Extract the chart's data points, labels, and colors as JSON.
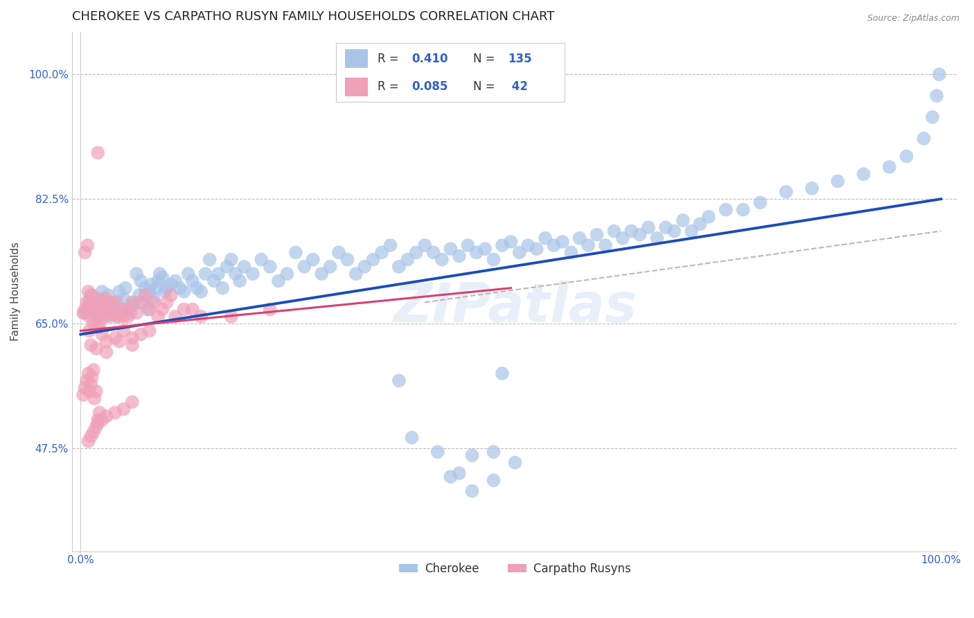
{
  "title": "CHEROKEE VS CARPATHO RUSYN FAMILY HOUSEHOLDS CORRELATION CHART",
  "source": "Source: ZipAtlas.com",
  "ylabel": "Family Households",
  "cherokee_color": "#a8c4e8",
  "carpatho_color": "#f0a0b8",
  "cherokee_line_color": "#1a4db8",
  "carpatho_line_color": "#d84070",
  "dashed_line_color": "#c8a8a8",
  "label_color": "#3060d0",
  "background_color": "#ffffff",
  "watermark": "ZIPatlas",
  "title_fontsize": 13,
  "axis_label_fontsize": 11,
  "tick_fontsize": 11,
  "cherokee_x": [
    0.005,
    0.008,
    0.01,
    0.012,
    0.015,
    0.018,
    0.02,
    0.022,
    0.025,
    0.028,
    0.03,
    0.032,
    0.035,
    0.038,
    0.04,
    0.042,
    0.045,
    0.048,
    0.05,
    0.052,
    0.055,
    0.058,
    0.06,
    0.062,
    0.065,
    0.068,
    0.07,
    0.072,
    0.075,
    0.078,
    0.08,
    0.082,
    0.085,
    0.088,
    0.09,
    0.092,
    0.095,
    0.098,
    0.1,
    0.105,
    0.11,
    0.115,
    0.12,
    0.125,
    0.13,
    0.135,
    0.14,
    0.145,
    0.15,
    0.155,
    0.16,
    0.165,
    0.17,
    0.175,
    0.18,
    0.185,
    0.19,
    0.2,
    0.21,
    0.22,
    0.23,
    0.24,
    0.25,
    0.26,
    0.27,
    0.28,
    0.29,
    0.3,
    0.31,
    0.32,
    0.33,
    0.34,
    0.35,
    0.36,
    0.37,
    0.38,
    0.39,
    0.4,
    0.41,
    0.42,
    0.43,
    0.44,
    0.45,
    0.46,
    0.47,
    0.48,
    0.49,
    0.5,
    0.51,
    0.52,
    0.53,
    0.54,
    0.55,
    0.56,
    0.57,
    0.58,
    0.59,
    0.6,
    0.61,
    0.62,
    0.63,
    0.64,
    0.65,
    0.66,
    0.67,
    0.68,
    0.69,
    0.7,
    0.71,
    0.72,
    0.73,
    0.75,
    0.77,
    0.79,
    0.82,
    0.85,
    0.88,
    0.91,
    0.94,
    0.96,
    0.98,
    0.99,
    0.995,
    0.998,
    0.37,
    0.49,
    0.43,
    0.48,
    0.505,
    0.48,
    0.455,
    0.44,
    0.415,
    0.385,
    0.455
  ],
  "cherokee_y": [
    0.665,
    0.67,
    0.68,
    0.69,
    0.675,
    0.66,
    0.67,
    0.685,
    0.695,
    0.67,
    0.68,
    0.69,
    0.66,
    0.665,
    0.675,
    0.68,
    0.695,
    0.665,
    0.685,
    0.7,
    0.67,
    0.665,
    0.675,
    0.68,
    0.72,
    0.69,
    0.71,
    0.68,
    0.7,
    0.67,
    0.695,
    0.705,
    0.685,
    0.7,
    0.71,
    0.72,
    0.715,
    0.695,
    0.7,
    0.705,
    0.71,
    0.7,
    0.695,
    0.72,
    0.71,
    0.7,
    0.695,
    0.72,
    0.74,
    0.71,
    0.72,
    0.7,
    0.73,
    0.74,
    0.72,
    0.71,
    0.73,
    0.72,
    0.74,
    0.73,
    0.71,
    0.72,
    0.75,
    0.73,
    0.74,
    0.72,
    0.73,
    0.75,
    0.74,
    0.72,
    0.73,
    0.74,
    0.75,
    0.76,
    0.73,
    0.74,
    0.75,
    0.76,
    0.75,
    0.74,
    0.755,
    0.745,
    0.76,
    0.75,
    0.755,
    0.74,
    0.76,
    0.765,
    0.75,
    0.76,
    0.755,
    0.77,
    0.76,
    0.765,
    0.75,
    0.77,
    0.76,
    0.775,
    0.76,
    0.78,
    0.77,
    0.78,
    0.775,
    0.785,
    0.77,
    0.785,
    0.78,
    0.795,
    0.78,
    0.79,
    0.8,
    0.81,
    0.81,
    0.82,
    0.835,
    0.84,
    0.85,
    0.86,
    0.87,
    0.885,
    0.91,
    0.94,
    0.97,
    1.0,
    0.57,
    0.58,
    0.435,
    0.47,
    0.455,
    0.43,
    0.415,
    0.44,
    0.47,
    0.49,
    0.465
  ],
  "carpatho_x": [
    0.003,
    0.005,
    0.007,
    0.009,
    0.01,
    0.012,
    0.013,
    0.015,
    0.016,
    0.018,
    0.02,
    0.022,
    0.024,
    0.025,
    0.027,
    0.029,
    0.03,
    0.033,
    0.035,
    0.038,
    0.04,
    0.042,
    0.045,
    0.048,
    0.05,
    0.055,
    0.06,
    0.065,
    0.07,
    0.075,
    0.08,
    0.085,
    0.09,
    0.095,
    0.1,
    0.105,
    0.11,
    0.12,
    0.13,
    0.14,
    0.175,
    0.22
  ],
  "carpatho_y": [
    0.665,
    0.67,
    0.68,
    0.695,
    0.66,
    0.68,
    0.69,
    0.665,
    0.675,
    0.685,
    0.66,
    0.67,
    0.665,
    0.68,
    0.66,
    0.685,
    0.66,
    0.67,
    0.68,
    0.665,
    0.68,
    0.66,
    0.66,
    0.67,
    0.66,
    0.67,
    0.68,
    0.665,
    0.68,
    0.69,
    0.67,
    0.68,
    0.66,
    0.67,
    0.68,
    0.69,
    0.66,
    0.67,
    0.67,
    0.66,
    0.66,
    0.67
  ],
  "carpatho_outliers_x": [
    0.003,
    0.005,
    0.007,
    0.009,
    0.01,
    0.012,
    0.013,
    0.015,
    0.016,
    0.018,
    0.02,
    0.022,
    0.009,
    0.012,
    0.015,
    0.018,
    0.02,
    0.025,
    0.03,
    0.04,
    0.05,
    0.06,
    0.012,
    0.018,
    0.03,
    0.045,
    0.06,
    0.02,
    0.005,
    0.008,
    0.01,
    0.015,
    0.02,
    0.025,
    0.03,
    0.04,
    0.05,
    0.06,
    0.07,
    0.08,
    0.022,
    0.055
  ],
  "carpatho_outliers_y": [
    0.55,
    0.56,
    0.57,
    0.58,
    0.555,
    0.565,
    0.575,
    0.585,
    0.545,
    0.555,
    0.515,
    0.525,
    0.485,
    0.492,
    0.498,
    0.505,
    0.51,
    0.515,
    0.52,
    0.525,
    0.53,
    0.54,
    0.62,
    0.615,
    0.61,
    0.625,
    0.63,
    0.89,
    0.75,
    0.76,
    0.64,
    0.65,
    0.645,
    0.635,
    0.625,
    0.63,
    0.64,
    0.62,
    0.635,
    0.64,
    0.645,
    0.66
  ],
  "cherokee_line_x0": 0.0,
  "cherokee_line_x1": 1.0,
  "cherokee_line_y0": 0.635,
  "cherokee_line_y1": 0.825,
  "carpatho_line_x0": 0.0,
  "carpatho_line_x1": 0.5,
  "carpatho_line_y0": 0.64,
  "carpatho_line_y1": 0.7,
  "dashed_line_x0": 0.4,
  "dashed_line_x1": 1.0,
  "dashed_line_y0": 0.68,
  "dashed_line_y1": 0.78,
  "ytick_vals": [
    0.475,
    0.65,
    0.825,
    1.0
  ],
  "ytick_labels": [
    "47.5%",
    "65.0%",
    "82.5%",
    "100.0%"
  ],
  "ylim_lo": 0.33,
  "ylim_hi": 1.06,
  "xlim_lo": -0.01,
  "xlim_hi": 1.02
}
